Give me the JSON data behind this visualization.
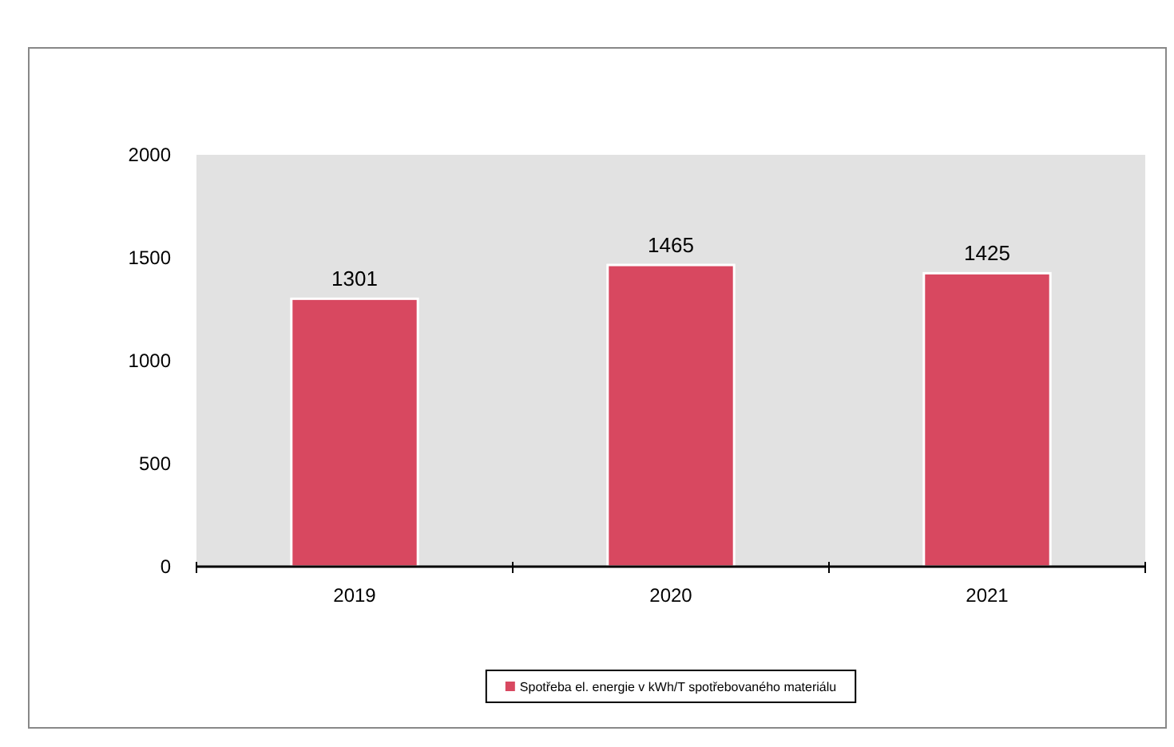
{
  "chart_data": {
    "type": "bar",
    "categories": [
      "2019",
      "2020",
      "2021"
    ],
    "series": [
      {
        "name": "Spotřeba el. energie v kWh/T spotřebovaného materiálu",
        "color": "#d84860",
        "values": [
          1301,
          1465,
          1425
        ]
      }
    ],
    "ylim": [
      0,
      2000
    ],
    "yticks": [
      0,
      500,
      1000,
      1500,
      2000
    ],
    "data_labels": true,
    "grid": false,
    "legend": "bottom"
  }
}
